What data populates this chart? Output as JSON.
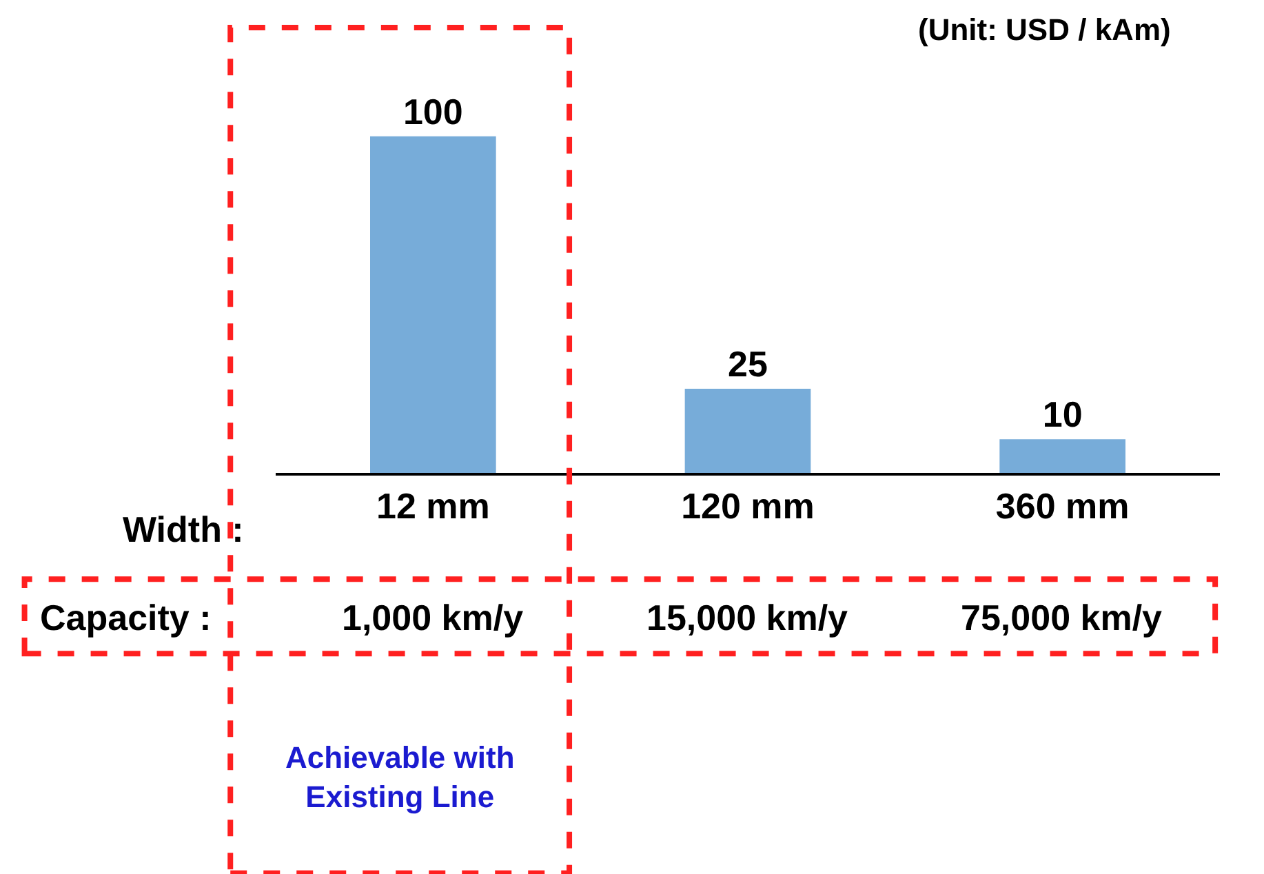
{
  "chart_data": {
    "type": "bar",
    "subtitle": "(Unit: USD / kAm)",
    "xlabel": "Width :",
    "categories": [
      "12 mm",
      "120 mm",
      "360 mm"
    ],
    "values": [
      100,
      25,
      10
    ],
    "color": "#77acd9",
    "data_labels": true,
    "legend": false,
    "tick_labels": "x",
    "annotations": [
      "Capacity :",
      "1,000 km/y",
      "15,000 km/y",
      "75,000 km/y",
      "Achievable with\nExisting Line"
    ]
  }
}
